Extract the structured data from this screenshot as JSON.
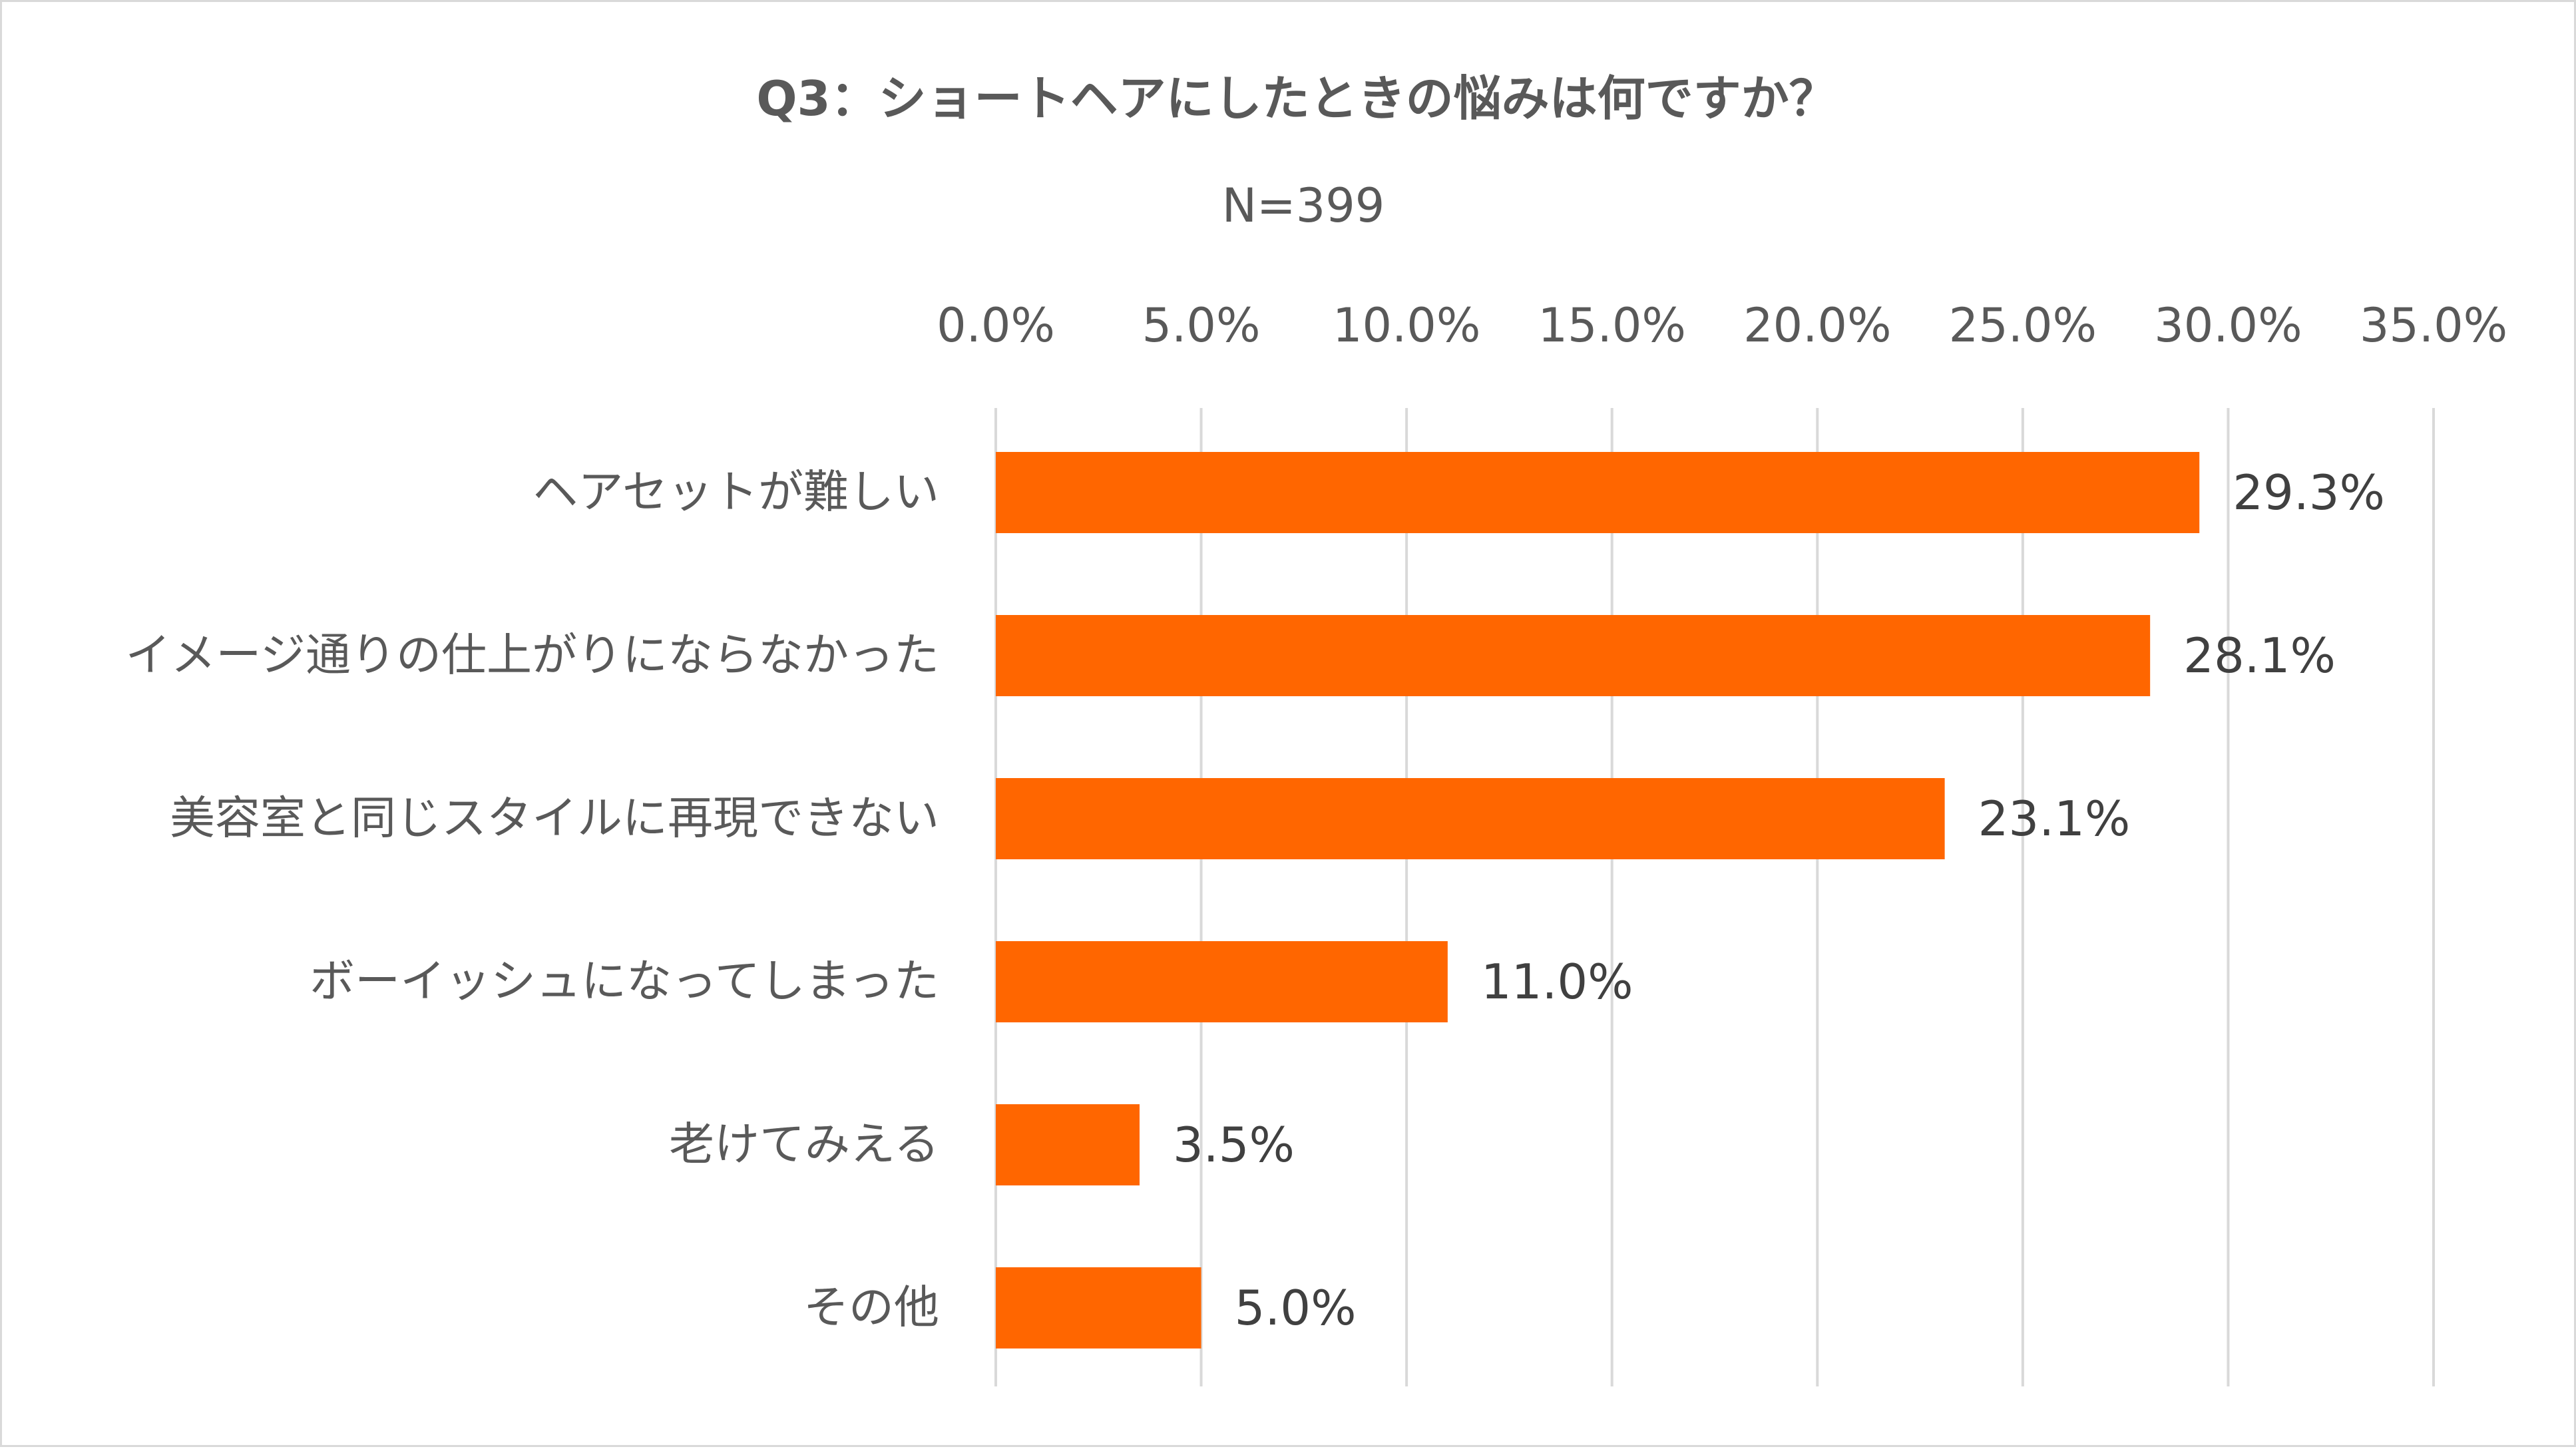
{
  "chart_data": {
    "type": "bar",
    "orientation": "horizontal",
    "title": "Q3：ショートヘアにしたときの悩みは何ですか？",
    "subtitle": "N=399",
    "categories": [
      "ヘアセットが難しい",
      "イメージ通りの仕上がりにならなかった",
      "美容室と同じスタイルに再現できない",
      "ボーイッシュになってしまった",
      "老けてみえる",
      "その他"
    ],
    "values": [
      29.3,
      28.1,
      23.1,
      11.0,
      3.5,
      5.0
    ],
    "value_labels": [
      "29.3%",
      "28.1%",
      "23.1%",
      "11.0%",
      "3.5%",
      "5.0%"
    ],
    "xlim": [
      0,
      35
    ],
    "ticks": [
      0,
      5,
      10,
      15,
      20,
      25,
      30,
      35
    ],
    "tick_labels": [
      "0.0%",
      "5.0%",
      "10.0%",
      "15.0%",
      "20.0%",
      "25.0%",
      "30.0%",
      "35.0%"
    ],
    "axis_position": "top",
    "grid": true,
    "legend": "none",
    "xlabel": "",
    "ylabel": "",
    "bar_color": "#ff6600"
  }
}
